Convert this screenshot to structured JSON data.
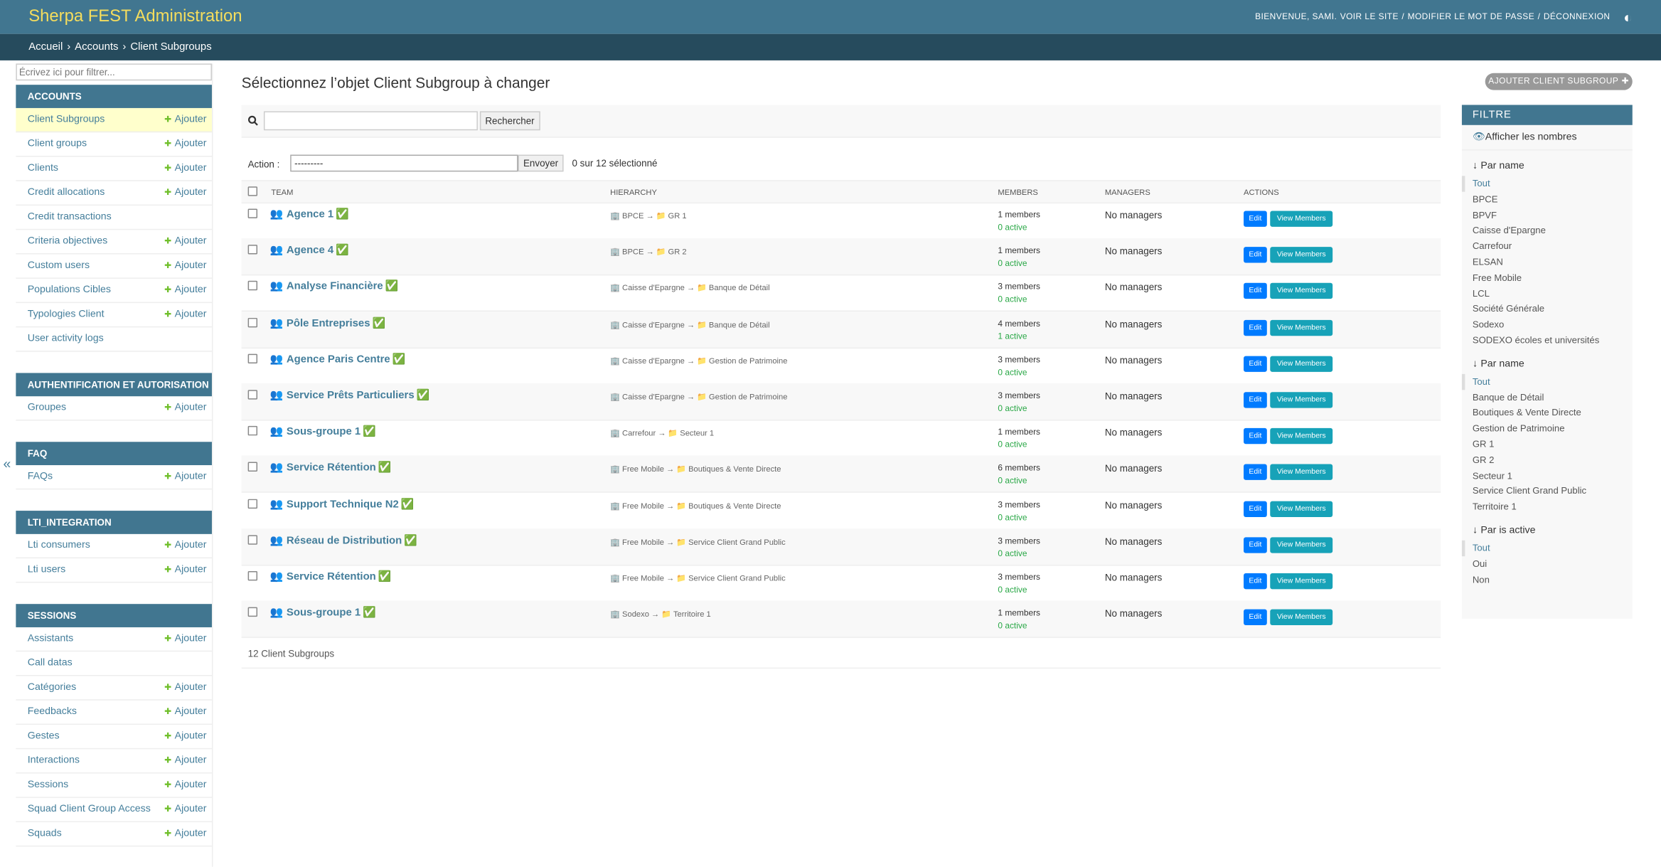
{
  "header": {
    "title": "Sherpa FEST Administration",
    "welcome": "BIENVENUE, SAMI.",
    "links": [
      "VOIR LE SITE",
      "MODIFIER LE MOT DE PASSE",
      "DÉCONNEXION"
    ],
    "link_sep": "/",
    "theme_icon": "◐"
  },
  "breadcrumbs": {
    "items": [
      "Accueil",
      "Accounts",
      "Client Subgroups"
    ],
    "sep": "›"
  },
  "sidebar": {
    "filter_placeholder": "Écrivez ici pour filtrer...",
    "add_icon": "✚",
    "add_label": "Ajouter",
    "collapse": "«",
    "modules": [
      {
        "title": "ACCOUNTS",
        "models": [
          {
            "name": "Client Subgroups",
            "add": true,
            "current": true
          },
          {
            "name": "Client groups",
            "add": true
          },
          {
            "name": "Clients",
            "add": true
          },
          {
            "name": "Credit allocations",
            "add": true
          },
          {
            "name": "Credit transactions",
            "add": false
          },
          {
            "name": "Criteria objectives",
            "add": true
          },
          {
            "name": "Custom users",
            "add": true
          },
          {
            "name": "Populations Cibles",
            "add": true
          },
          {
            "name": "Typologies Client",
            "add": true
          },
          {
            "name": "User activity logs",
            "add": false
          }
        ]
      },
      {
        "title": "AUTHENTIFICATION ET AUTORISATION",
        "models": [
          {
            "name": "Groupes",
            "add": true
          }
        ]
      },
      {
        "title": "FAQ",
        "models": [
          {
            "name": "FAQs",
            "add": true
          }
        ]
      },
      {
        "title": "LTI_INTEGRATION",
        "models": [
          {
            "name": "Lti consumers",
            "add": true
          },
          {
            "name": "Lti users",
            "add": true
          }
        ]
      },
      {
        "title": "SESSIONS",
        "models": [
          {
            "name": "Assistants",
            "add": true
          },
          {
            "name": "Call datas",
            "add": false
          },
          {
            "name": "Catégories",
            "add": true
          },
          {
            "name": "Feedbacks",
            "add": true
          },
          {
            "name": "Gestes",
            "add": true
          },
          {
            "name": "Interactions",
            "add": true
          },
          {
            "name": "Sessions",
            "add": true
          },
          {
            "name": "Squad Client Group Access",
            "add": true
          },
          {
            "name": "Squads",
            "add": true
          }
        ]
      }
    ]
  },
  "content": {
    "title": "Sélectionnez l’objet Client Subgroup à changer",
    "add_button": "AJOUTER CLIENT SUBGROUP",
    "add_button_icon": "✚",
    "search_button": "Rechercher",
    "action_label": "Action :",
    "action_option": "---------",
    "action_submit": "Envoyer",
    "selection_counter": "0 sur 12 sélectionné",
    "columns": [
      "TEAM",
      "HIERARCHY",
      "MEMBERS",
      "MANAGERS",
      "ACTIONS"
    ],
    "icons": {
      "team": "👥",
      "check": "✅",
      "org": "🏢",
      "group": "📁",
      "arrow": "→"
    },
    "buttons": {
      "edit": "Edit",
      "view": "View Members"
    },
    "rows": [
      {
        "team": "Agence 1",
        "org": "BPCE",
        "group": "GR 1",
        "members": "1 members",
        "active": "0 active",
        "managers": "No managers"
      },
      {
        "team": "Agence 4",
        "org": "BPCE",
        "group": "GR 2",
        "members": "1 members",
        "active": "0 active",
        "managers": "No managers"
      },
      {
        "team": "Analyse Financière",
        "org": "Caisse d'Epargne",
        "group": "Banque de Détail",
        "members": "3 members",
        "active": "0 active",
        "managers": "No managers"
      },
      {
        "team": "Pôle Entreprises",
        "org": "Caisse d'Epargne",
        "group": "Banque de Détail",
        "members": "4 members",
        "active": "1 active",
        "managers": "No managers"
      },
      {
        "team": "Agence Paris Centre",
        "org": "Caisse d'Epargne",
        "group": "Gestion de Patrimoine",
        "members": "3 members",
        "active": "0 active",
        "managers": "No managers"
      },
      {
        "team": "Service Prêts Particuliers",
        "org": "Caisse d'Epargne",
        "group": "Gestion de Patrimoine",
        "members": "3 members",
        "active": "0 active",
        "managers": "No managers"
      },
      {
        "team": "Sous-groupe 1",
        "org": "Carrefour",
        "group": "Secteur 1",
        "members": "1 members",
        "active": "0 active",
        "managers": "No managers"
      },
      {
        "team": "Service Rétention",
        "org": "Free Mobile",
        "group": "Boutiques & Vente Directe",
        "members": "6 members",
        "active": "0 active",
        "managers": "No managers"
      },
      {
        "team": "Support Technique N2",
        "org": "Free Mobile",
        "group": "Boutiques & Vente Directe",
        "members": "3 members",
        "active": "0 active",
        "managers": "No managers"
      },
      {
        "team": "Réseau de Distribution",
        "org": "Free Mobile",
        "group": "Service Client Grand Public",
        "members": "3 members",
        "active": "0 active",
        "managers": "No managers"
      },
      {
        "team": "Service Rétention",
        "org": "Free Mobile",
        "group": "Service Client Grand Public",
        "members": "3 members",
        "active": "0 active",
        "managers": "No managers"
      },
      {
        "team": "Sous-groupe 1",
        "org": "Sodexo",
        "group": "Territoire 1",
        "members": "1 members",
        "active": "0 active",
        "managers": "No managers"
      }
    ],
    "paginator": "12 Client Subgroups"
  },
  "filter": {
    "title": "FILTRE",
    "show_counts_icon": "👁",
    "show_counts": "Afficher les nombres",
    "arrow": "↓",
    "sections": [
      {
        "title": "Par name",
        "options": [
          "Tout",
          "BPCE",
          "BPVF",
          "Caisse d'Epargne",
          "Carrefour",
          "ELSAN",
          "Free Mobile",
          "LCL",
          "Société Générale",
          "Sodexo",
          "SODEXO écoles et universités"
        ]
      },
      {
        "title": "Par name",
        "options": [
          "Tout",
          "Banque de Détail",
          "Boutiques & Vente Directe",
          "Gestion de Patrimoine",
          "GR 1",
          "GR 2",
          "Secteur 1",
          "Service Client Grand Public",
          "Territoire 1"
        ]
      },
      {
        "title": "Par is active",
        "options": [
          "Tout",
          "Oui",
          "Non"
        ]
      }
    ]
  }
}
